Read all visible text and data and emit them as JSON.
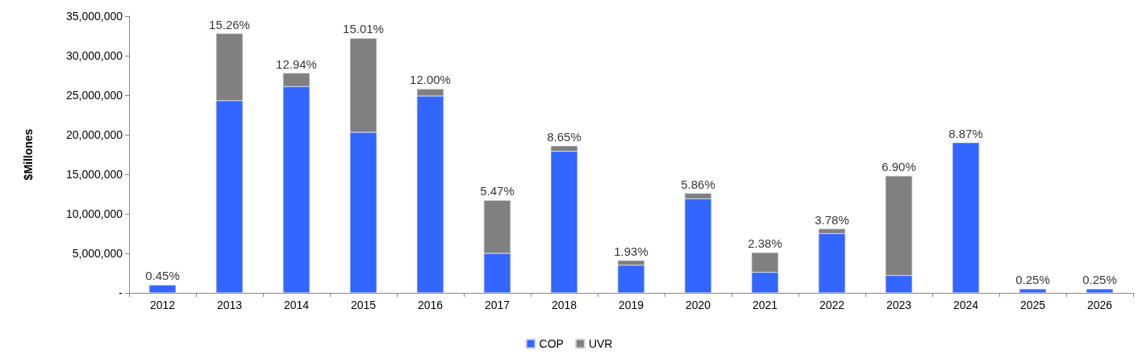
{
  "chart_data": {
    "type": "bar",
    "stacked": true,
    "ylabel": "$Millones",
    "categories": [
      "2012",
      "2013",
      "2014",
      "2015",
      "2016",
      "2017",
      "2018",
      "2019",
      "2020",
      "2021",
      "2022",
      "2023",
      "2024",
      "2025",
      "2026"
    ],
    "series": [
      {
        "name": "COP",
        "color": "#3366ff",
        "values": [
          1000000,
          24300000,
          26100000,
          20300000,
          24900000,
          5000000,
          17900000,
          3500000,
          11900000,
          2600000,
          7500000,
          2200000,
          19000000,
          500000,
          500000
        ]
      },
      {
        "name": "UVR",
        "color": "#808080",
        "values": [
          null,
          8500000,
          1700000,
          11900000,
          900000,
          6700000,
          700000,
          600000,
          700000,
          2500000,
          600000,
          12600000,
          null,
          null,
          null
        ]
      }
    ],
    "ylim": [
      0,
      35000000
    ],
    "yticks": [
      {
        "value": 0,
        "label": "-"
      },
      {
        "value": 5000000,
        "label": "5,000,000"
      },
      {
        "value": 10000000,
        "label": "10,000,000"
      },
      {
        "value": 15000000,
        "label": "15,000,000"
      },
      {
        "value": 20000000,
        "label": "20,000,000"
      },
      {
        "value": 25000000,
        "label": "25,000,000"
      },
      {
        "value": 30000000,
        "label": "30,000,000"
      },
      {
        "value": 35000000,
        "label": "35,000,000"
      }
    ],
    "annotations": [
      {
        "text": "0.45%",
        "x": "2012",
        "y": 1000000
      },
      {
        "text": "15.26%",
        "x": "2013",
        "y": 32800000
      },
      {
        "text": "12.94%",
        "x": "2014",
        "y": 27800000
      },
      {
        "text": "15.01%",
        "x": "2015",
        "y": 32200000
      },
      {
        "text": "12.00%",
        "x": "2016",
        "y": 25800000
      },
      {
        "text": "5.47%",
        "x": "2017",
        "y": 11700000
      },
      {
        "text": "8.65%",
        "x": "2018",
        "y": 18600000
      },
      {
        "text": "1.93%",
        "x": "2019",
        "y": 4100000
      },
      {
        "text": "5.86%",
        "x": "2020",
        "y": 12600000
      },
      {
        "text": "2.38%",
        "x": "2021",
        "y": 5100000
      },
      {
        "text": "3.78%",
        "x": "2022",
        "y": 8100000
      },
      {
        "text": "6.90%",
        "x": "2023",
        "y": 14800000
      },
      {
        "text": "8.87%",
        "x": "2024",
        "y": 19000000
      },
      {
        "text": "0.25%",
        "x": "2025",
        "y": 500000
      },
      {
        "text": "0.25%",
        "x": "2026",
        "y": 500000
      }
    ],
    "grid": false,
    "legend": "bottom"
  }
}
